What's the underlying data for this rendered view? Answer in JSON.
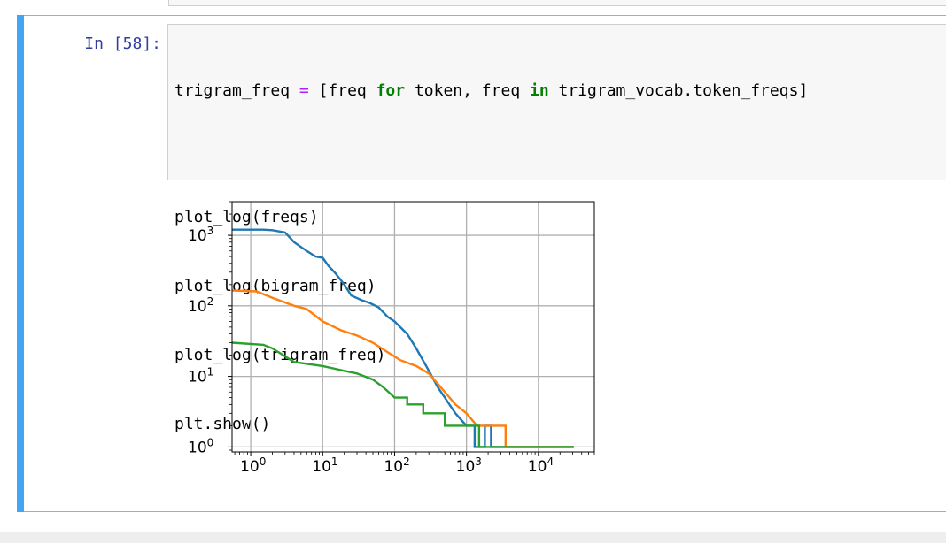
{
  "cell": {
    "prompt": "In [58]:",
    "code": {
      "line1": {
        "a": "trigram_freq ",
        "eq": "=",
        "b": " [freq ",
        "for": "for",
        "c": " token, freq ",
        "in": "in",
        "d": " trigram_vocab.token_freqs]"
      },
      "line2": "plot_log(freqs)",
      "line3": "plot_log(bigram_freq)",
      "line4": "plot_log(trigram_freq)",
      "line5": "plt.show()"
    }
  },
  "chart_data": {
    "type": "line",
    "xscale": "log",
    "yscale": "log",
    "xlim": [
      0.55,
      60000
    ],
    "ylim": [
      0.85,
      3000
    ],
    "grid": true,
    "legend": "none",
    "xticks": [
      {
        "value": 1,
        "base": "10",
        "exp": "0"
      },
      {
        "value": 10,
        "base": "10",
        "exp": "1"
      },
      {
        "value": 100,
        "base": "10",
        "exp": "2"
      },
      {
        "value": 1000,
        "base": "10",
        "exp": "3"
      },
      {
        "value": 10000,
        "base": "10",
        "exp": "4"
      }
    ],
    "yticks": [
      {
        "value": 1,
        "base": "10",
        "exp": "0"
      },
      {
        "value": 10,
        "base": "10",
        "exp": "1"
      },
      {
        "value": 100,
        "base": "10",
        "exp": "2"
      },
      {
        "value": 1000,
        "base": "10",
        "exp": "3"
      }
    ],
    "series": [
      {
        "color": "#1f77b4",
        "points": [
          [
            0.55,
            1200
          ],
          [
            1.5,
            1200
          ],
          [
            2,
            1180
          ],
          [
            3,
            1100
          ],
          [
            4,
            800
          ],
          [
            6,
            600
          ],
          [
            8,
            500
          ],
          [
            10,
            480
          ],
          [
            12,
            370
          ],
          [
            15,
            290
          ],
          [
            20,
            200
          ],
          [
            25,
            140
          ],
          [
            35,
            120
          ],
          [
            45,
            110
          ],
          [
            60,
            95
          ],
          [
            80,
            70
          ],
          [
            100,
            60
          ],
          [
            150,
            40
          ],
          [
            200,
            25
          ],
          [
            300,
            12
          ],
          [
            400,
            7
          ],
          [
            500,
            5
          ],
          [
            700,
            3
          ],
          [
            1000,
            2
          ],
          [
            1300,
            2
          ],
          [
            1300,
            1
          ],
          [
            1800,
            1
          ],
          [
            1800,
            2
          ],
          [
            2200,
            2
          ],
          [
            2200,
            1
          ],
          [
            31000,
            1
          ]
        ]
      },
      {
        "color": "#ff7f0e",
        "points": [
          [
            0.55,
            165
          ],
          [
            1.2,
            160
          ],
          [
            2,
            130
          ],
          [
            4,
            100
          ],
          [
            6,
            90
          ],
          [
            10,
            60
          ],
          [
            12,
            55
          ],
          [
            18,
            45
          ],
          [
            30,
            38
          ],
          [
            50,
            30
          ],
          [
            80,
            22
          ],
          [
            120,
            17
          ],
          [
            200,
            14
          ],
          [
            300,
            11
          ],
          [
            500,
            6
          ],
          [
            700,
            4
          ],
          [
            1000,
            3
          ],
          [
            1400,
            2
          ],
          [
            3500,
            2
          ],
          [
            3500,
            1
          ],
          [
            31000,
            1
          ]
        ]
      },
      {
        "color": "#2ca02c",
        "points": [
          [
            0.55,
            30
          ],
          [
            1.5,
            28
          ],
          [
            2,
            25
          ],
          [
            4,
            16
          ],
          [
            10,
            14
          ],
          [
            20,
            12
          ],
          [
            30,
            11
          ],
          [
            50,
            9
          ],
          [
            70,
            7
          ],
          [
            100,
            5
          ],
          [
            150,
            5
          ],
          [
            150,
            4
          ],
          [
            250,
            4
          ],
          [
            250,
            3
          ],
          [
            500,
            3
          ],
          [
            500,
            2
          ],
          [
            1500,
            2
          ],
          [
            1500,
            1
          ],
          [
            31000,
            1
          ]
        ]
      }
    ]
  }
}
